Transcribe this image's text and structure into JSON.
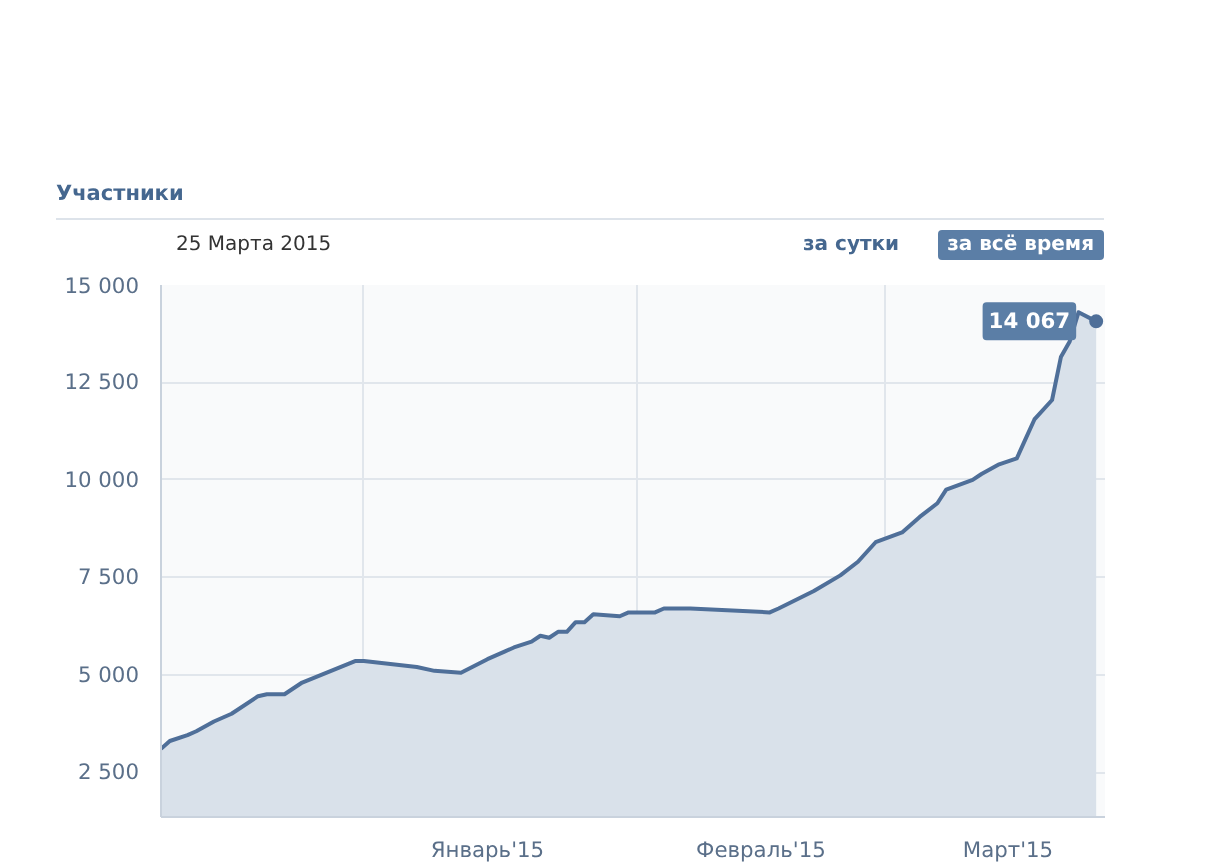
{
  "chart_data": {
    "type": "area",
    "title": "Участники",
    "subtitle": "25 Марта 2015",
    "x": [
      "2014-12-09",
      "2014-12-10",
      "2014-12-12",
      "2014-12-13",
      "2014-12-15",
      "2014-12-17",
      "2014-12-20",
      "2014-12-21",
      "2014-12-23",
      "2014-12-25",
      "2014-12-31",
      "2015-01-01",
      "2015-01-07",
      "2015-01-09",
      "2015-01-12",
      "2015-01-15",
      "2015-01-17",
      "2015-01-18",
      "2015-01-20",
      "2015-01-21",
      "2015-01-22",
      "2015-01-23",
      "2015-01-24",
      "2015-01-25",
      "2015-01-26",
      "2015-01-27",
      "2015-01-30",
      "2015-01-31",
      "2015-02-03",
      "2015-02-04",
      "2015-02-07",
      "2015-02-16",
      "2015-02-17",
      "2015-02-21",
      "2015-02-24",
      "2015-02-26",
      "2015-02-28",
      "2015-03-03",
      "2015-03-05",
      "2015-03-07",
      "2015-03-08",
      "2015-03-11",
      "2015-03-12",
      "2015-03-14",
      "2015-03-16",
      "2015-03-17",
      "2015-03-18",
      "2015-03-20",
      "2015-03-21",
      "2015-03-22",
      "2015-03-23",
      "2015-03-25"
    ],
    "series": [
      {
        "color": "#4f6f99",
        "values": [
          3100,
          3300,
          3450,
          3550,
          3800,
          4000,
          4450,
          4500,
          4500,
          4800,
          5350,
          5350,
          5200,
          5100,
          5050,
          5400,
          5600,
          5700,
          5850,
          6000,
          5950,
          6100,
          6100,
          6350,
          6350,
          6550,
          6500,
          6600,
          6600,
          6700,
          6700,
          6600,
          6700,
          7150,
          7550,
          7900,
          8400,
          8650,
          9050,
          9400,
          9750,
          10000,
          10150,
          10400,
          10550,
          11050,
          11550,
          12050,
          13150,
          13550,
          14300,
          14067
        ]
      }
    ],
    "xlim": [
      "2014-12-09",
      "2015-03-26"
    ],
    "xticks": [
      {
        "value": "2015-01-01",
        "label": null
      },
      {
        "value": "2015-01-15",
        "label": "Январь'15"
      },
      {
        "value": "2015-02-01",
        "label": null
      },
      {
        "value": "2015-02-15",
        "label": "Февраль'15"
      },
      {
        "value": "2015-03-01",
        "label": null
      },
      {
        "value": "2015-03-15",
        "label": "Март'15"
      }
    ],
    "ylim": [
      1350,
      15000
    ],
    "yticks": [
      {
        "value": 2500,
        "label": "2 500"
      },
      {
        "value": 5000,
        "label": "5 000"
      },
      {
        "value": 7500,
        "label": "7 500"
      },
      {
        "value": 10000,
        "label": "10 000"
      },
      {
        "value": 12500,
        "label": "12 500"
      },
      {
        "value": 15000,
        "label": "15 000"
      }
    ],
    "grid": true,
    "marker": "none",
    "annotations": [
      "за сутки",
      "за всё время",
      {
        "text": "14 067",
        "x": "2015-03-25",
        "y": 14067
      }
    ]
  }
}
